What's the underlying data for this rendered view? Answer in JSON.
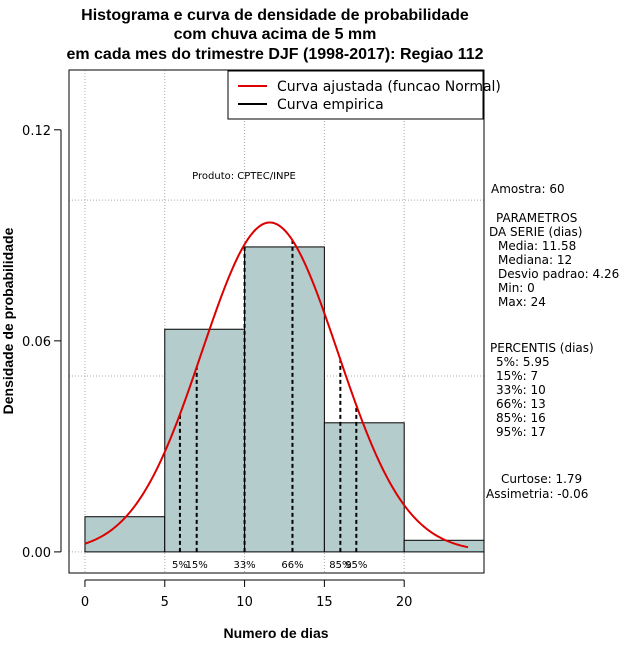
{
  "chart_data": {
    "type": "bar",
    "title_lines": [
      "Histograma e curva de densidade de probabilidade",
      "com chuva acima de 5 mm",
      "em cada mes do trimestre DJF (1998-2017): Regiao 112"
    ],
    "xlabel": "Numero de dias",
    "ylabel": "Densidade de probabilidade",
    "xlim": [
      -1,
      25
    ],
    "ylim": [
      -0.006,
      0.137
    ],
    "x_ticks": [
      0,
      5,
      10,
      15,
      20
    ],
    "y_ticks": [
      0.0,
      0.06,
      0.12
    ],
    "y_tick_labels": [
      "0.00",
      "0.06",
      "0.12"
    ],
    "grid_x": [
      0,
      5,
      10,
      15,
      20
    ],
    "grid_y": [
      0.0,
      0.05,
      0.1
    ],
    "bins": [
      {
        "from": 0,
        "to": 5,
        "density": 0.01
      },
      {
        "from": 5,
        "to": 10,
        "density": 0.0633
      },
      {
        "from": 10,
        "to": 15,
        "density": 0.0867
      },
      {
        "from": 15,
        "to": 20,
        "density": 0.0367
      },
      {
        "from": 20,
        "to": 25,
        "density": 0.0033
      }
    ],
    "normal_fit": {
      "mean": 11.58,
      "sd": 4.26,
      "from": 0,
      "to": 24
    },
    "percentile_lines": [
      {
        "label": "5%",
        "value": 5.95
      },
      {
        "label": "15%",
        "value": 7
      },
      {
        "label": "33%",
        "value": 10
      },
      {
        "label": "66%",
        "value": 13
      },
      {
        "label": "85%",
        "value": 16
      },
      {
        "label": "95%",
        "value": 17
      }
    ],
    "legend": [
      {
        "label": "Curva ajustada (funcao Normal)",
        "color": "#dd0000"
      },
      {
        "label": "Curva empirica",
        "color": "#000000"
      }
    ],
    "legend_position": "top-right",
    "watermark": "Produto: CPTEC/INPE",
    "colors": {
      "bar_fill": "#b4cccc",
      "bar_stroke": "#000000",
      "curve": "#dd0000",
      "grid": "#aaaaaa"
    }
  },
  "side_panel": {
    "sample": "Amostra: 60",
    "params_heading": [
      "PARAMETROS",
      "DA SERIE (dias)"
    ],
    "params": [
      "Media: 11.58",
      "Mediana: 12",
      "Desvio padrao: 4.26",
      "Min: 0",
      "Max: 24"
    ],
    "percentis_heading": "PERCENTIS (dias)",
    "percentis": [
      "5%: 5.95",
      "15%: 7",
      "33%: 10",
      "66%: 13",
      "85%: 16",
      "95%: 17"
    ],
    "curtose": "Curtose: 1.79",
    "assimetria": "Assimetria: -0.06"
  }
}
